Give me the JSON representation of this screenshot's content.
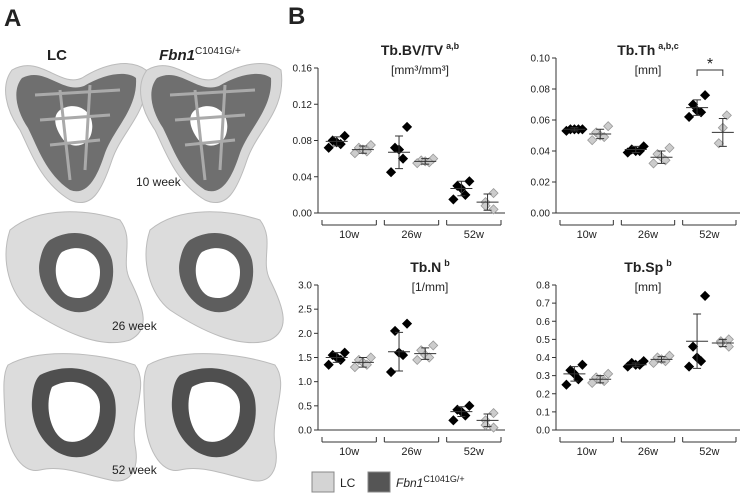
{
  "panels": [
    "A",
    "B"
  ],
  "panel_a": {
    "columns": [
      {
        "text": "LC"
      },
      {
        "text": "Fbn1",
        "sup": "C1041G/+"
      }
    ],
    "rows": [
      "10 week",
      "26 week",
      "52 week"
    ]
  },
  "legend": [
    {
      "text": "LC",
      "color": "#d4d4d4"
    },
    {
      "text": "Fbn1",
      "sup": "C1041G/+",
      "color": "#555555"
    }
  ],
  "chart_data": [
    {
      "type": "dot",
      "title": "Tb.BV/TV",
      "title_sup": "a,b",
      "unit": "[mm³/mm³]",
      "categories": [
        "10w",
        "26w",
        "52w"
      ],
      "ylim": [
        0,
        0.16
      ],
      "yticks": [
        {
          "value": 0,
          "label": "0.00"
        },
        0.04,
        0.08,
        0.12,
        0.16
      ],
      "series": [
        {
          "color": "#000000",
          "values": [
            [
              0.085,
              0.08,
              0.078,
              0.076,
              0.072
            ],
            [
              0.095,
              0.072,
              0.07,
              0.06,
              0.045
            ],
            [
              0.035,
              0.03,
              0.027,
              0.02,
              0.015
            ]
          ],
          "mean": [
            0.079,
            0.067,
            0.027
          ],
          "sd": [
            0.005,
            0.018,
            0.008
          ]
        },
        {
          "color": "#cccccc",
          "values": [
            [
              0.075,
              0.072,
              0.07,
              0.068,
              0.066
            ],
            [
              0.06,
              0.058,
              0.057,
              0.056,
              0.055
            ],
            [
              0.022,
              0.012,
              0.008,
              0.004
            ]
          ],
          "mean": [
            0.07,
            0.057,
            0.012
          ],
          "sd": [
            0.004,
            0.003,
            0.009
          ]
        }
      ]
    },
    {
      "type": "dot",
      "title": "Tb.Th",
      "title_sup": "a,b,c",
      "unit": "[mm]",
      "categories": [
        "10w",
        "26w",
        "52w"
      ],
      "ylim": [
        0,
        0.1
      ],
      "yticks": [
        {
          "value": 0,
          "label": "0.00"
        },
        0.02,
        0.04,
        0.06,
        0.08,
        {
          "value": 0.1,
          "label": "0.10"
        }
      ],
      "annotation": "*",
      "series": [
        {
          "color": "#000000",
          "values": [
            [
              0.054,
              0.054,
              0.054,
              0.054,
              0.053
            ],
            [
              0.043,
              0.041,
              0.04,
              0.04,
              0.039
            ],
            [
              0.076,
              0.07,
              0.066,
              0.065,
              0.062
            ]
          ],
          "mean": [
            0.054,
            0.041,
            0.068
          ],
          "sd": [
            0.001,
            0.002,
            0.005
          ]
        },
        {
          "color": "#cccccc",
          "values": [
            [
              0.056,
              0.052,
              0.05,
              0.049,
              0.047
            ],
            [
              0.042,
              0.038,
              0.036,
              0.034,
              0.032
            ],
            [
              0.063,
              0.055,
              0.045
            ]
          ],
          "mean": [
            0.051,
            0.036,
            0.052
          ],
          "sd": [
            0.003,
            0.004,
            0.009
          ]
        }
      ]
    },
    {
      "type": "dot",
      "title": "Tb.N",
      "title_sup": "b",
      "unit": "[1/mm]",
      "categories": [
        "10w",
        "26w",
        "52w"
      ],
      "ylim": [
        0,
        3
      ],
      "yticks": [
        {
          "value": 0,
          "label": "0.0"
        },
        0.5,
        {
          "value": 1,
          "label": "1.0"
        },
        1.5,
        {
          "value": 2,
          "label": "2.0"
        },
        2.5,
        {
          "value": 3,
          "label": "3.0"
        }
      ],
      "series": [
        {
          "color": "#000000",
          "values": [
            [
              1.6,
              1.55,
              1.5,
              1.45,
              1.35
            ],
            [
              2.2,
              2.05,
              1.6,
              1.55,
              1.2
            ],
            [
              0.5,
              0.42,
              0.38,
              0.3,
              0.2
            ]
          ],
          "mean": [
            1.5,
            1.62,
            0.38
          ],
          "sd": [
            0.1,
            0.4,
            0.1
          ]
        },
        {
          "color": "#cccccc",
          "values": [
            [
              1.5,
              1.45,
              1.4,
              1.35,
              1.3
            ],
            [
              1.75,
              1.65,
              1.55,
              1.5,
              1.45
            ],
            [
              0.35,
              0.2,
              0.1,
              0.05
            ]
          ],
          "mean": [
            1.4,
            1.58,
            0.2
          ],
          "sd": [
            0.1,
            0.12,
            0.13
          ]
        }
      ]
    },
    {
      "type": "dot",
      "title": "Tb.Sp",
      "title_sup": "b",
      "unit": "[mm]",
      "categories": [
        "10w",
        "26w",
        "52w"
      ],
      "ylim": [
        0,
        0.8
      ],
      "yticks": [
        {
          "value": 0,
          "label": "0.0"
        },
        0.1,
        0.2,
        0.3,
        0.4,
        0.5,
        0.6,
        0.7,
        0.8
      ],
      "series": [
        {
          "color": "#000000",
          "values": [
            [
              0.36,
              0.33,
              0.31,
              0.28,
              0.25
            ],
            [
              0.38,
              0.37,
              0.36,
              0.36,
              0.35
            ],
            [
              0.74,
              0.46,
              0.4,
              0.38,
              0.35
            ]
          ],
          "mean": [
            0.31,
            0.36,
            0.49
          ],
          "sd": [
            0.04,
            0.01,
            0.15
          ]
        },
        {
          "color": "#cccccc",
          "values": [
            [
              0.31,
              0.29,
              0.28,
              0.27,
              0.26
            ],
            [
              0.41,
              0.4,
              0.39,
              0.38,
              0.37
            ],
            [
              0.5,
              0.49,
              0.48,
              0.46
            ]
          ],
          "mean": [
            0.28,
            0.39,
            0.48
          ],
          "sd": [
            0.02,
            0.015,
            0.02
          ]
        }
      ]
    }
  ]
}
